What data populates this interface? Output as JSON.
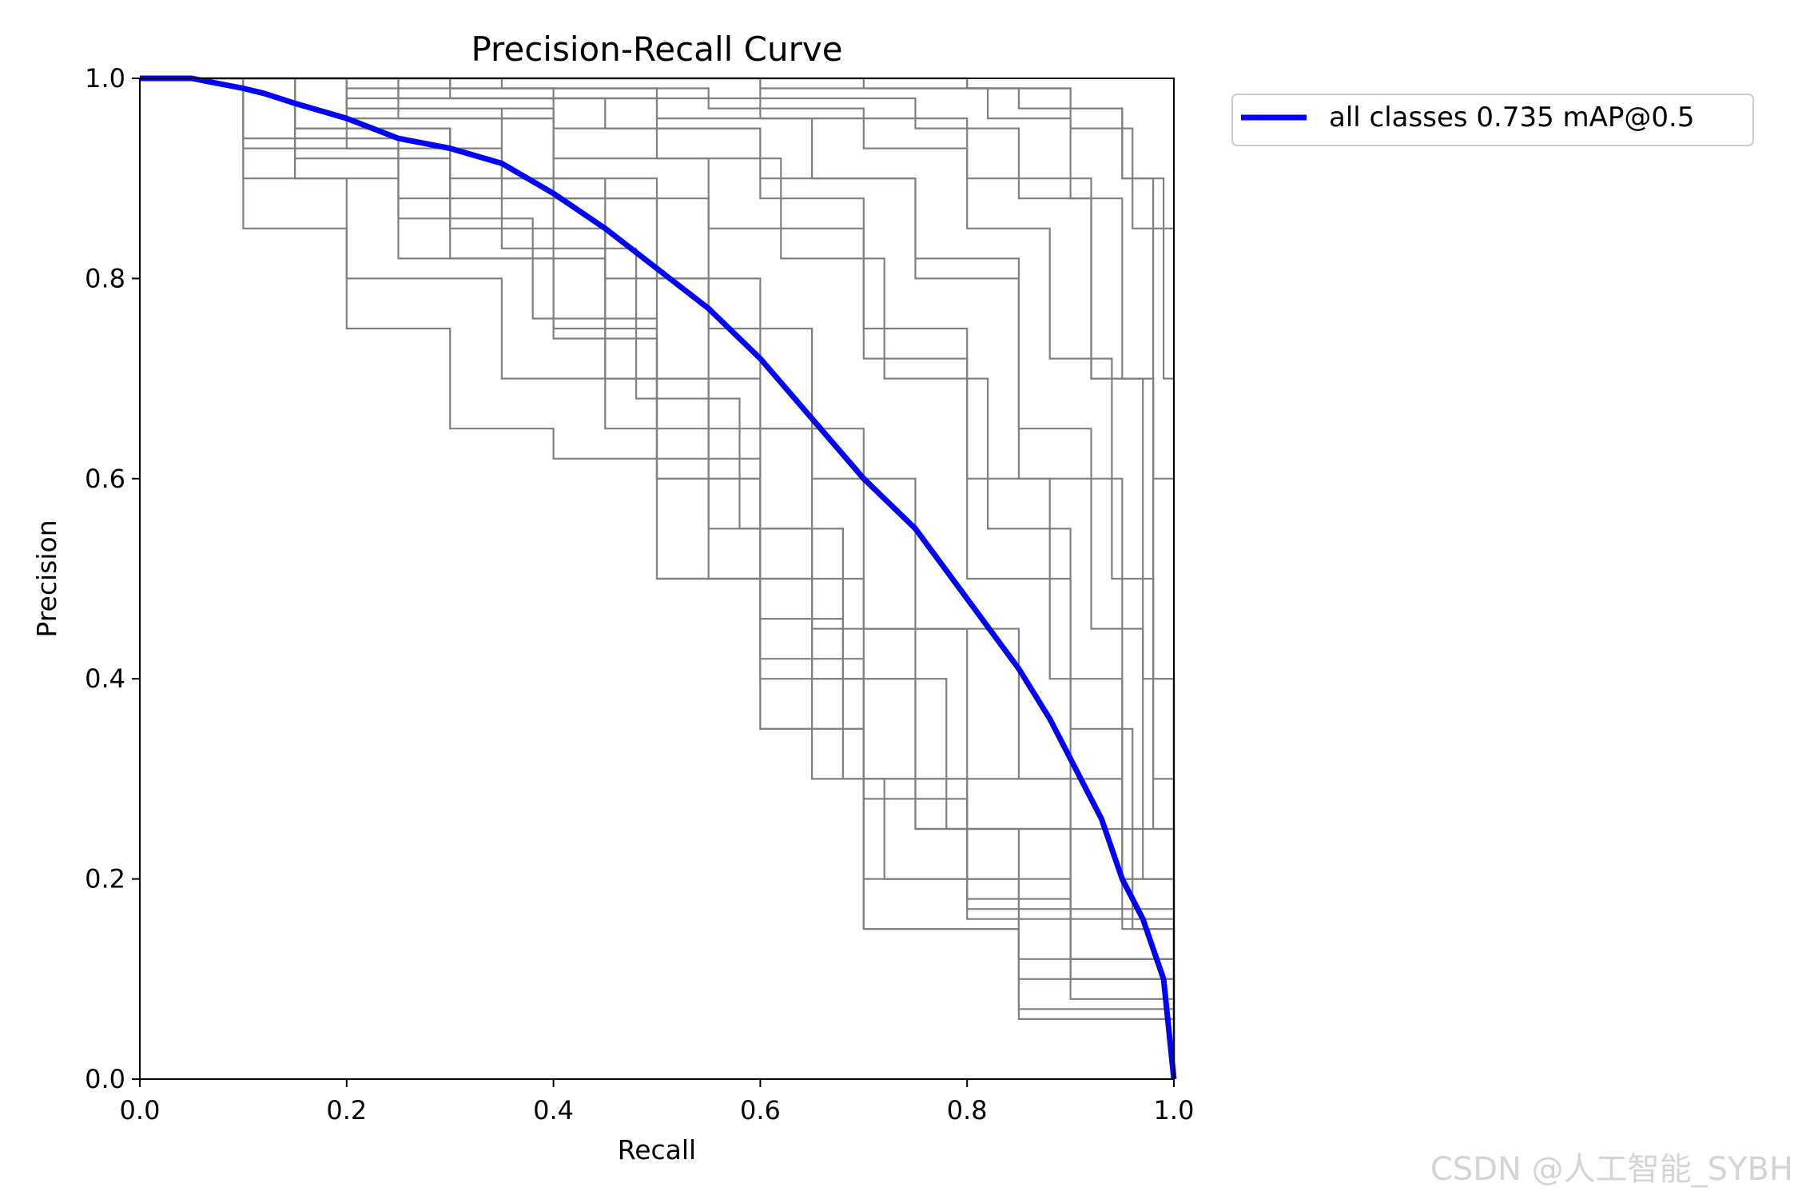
{
  "chart_data": {
    "type": "line",
    "title": "Precision-Recall Curve",
    "xlabel": "Recall",
    "ylabel": "Precision",
    "xlim": [
      0,
      1
    ],
    "ylim": [
      0,
      1
    ],
    "xticks": [
      "0.0",
      "0.2",
      "0.4",
      "0.6",
      "0.8",
      "1.0"
    ],
    "yticks": [
      "0.0",
      "0.2",
      "0.4",
      "0.6",
      "0.8",
      "1.0"
    ],
    "grid": false,
    "legend_position": "outside-top-right",
    "legend": [
      "all classes 0.735 mAP@0.5"
    ],
    "colors": {
      "mean": "#0000ff",
      "class": "#808080"
    },
    "mean_series": {
      "name": "all classes 0.735 mAP@0.5",
      "x": [
        0,
        0.05,
        0.1,
        0.12,
        0.15,
        0.2,
        0.25,
        0.3,
        0.35,
        0.4,
        0.45,
        0.5,
        0.55,
        0.6,
        0.65,
        0.7,
        0.75,
        0.8,
        0.85,
        0.88,
        0.9,
        0.93,
        0.95,
        0.97,
        0.98,
        0.99,
        1.0
      ],
      "y": [
        1.0,
        1.0,
        0.99,
        0.985,
        0.975,
        0.96,
        0.94,
        0.93,
        0.915,
        0.885,
        0.85,
        0.81,
        0.77,
        0.72,
        0.66,
        0.6,
        0.55,
        0.48,
        0.41,
        0.36,
        0.32,
        0.26,
        0.2,
        0.16,
        0.13,
        0.1,
        0.0
      ]
    },
    "class_series": [
      {
        "x": [
          0,
          0.2,
          0.4,
          0.6,
          0.8,
          0.9,
          0.96,
          1.0
        ],
        "y": [
          1.0,
          1.0,
          1.0,
          1.0,
          0.99,
          0.95,
          0.85,
          0.0
        ]
      },
      {
        "x": [
          0,
          0.3,
          0.6,
          0.85,
          0.95,
          0.99,
          1.0
        ],
        "y": [
          1.0,
          1.0,
          0.99,
          0.97,
          0.9,
          0.7,
          0.0
        ]
      },
      {
        "x": [
          0,
          0.2,
          0.4,
          0.6,
          0.8,
          0.92,
          0.98,
          1.0
        ],
        "y": [
          1.0,
          0.99,
          0.98,
          0.96,
          0.9,
          0.7,
          0.3,
          0.0
        ]
      },
      {
        "x": [
          0,
          0.2,
          0.4,
          0.6,
          0.75,
          0.85,
          0.95,
          1.0
        ],
        "y": [
          1.0,
          0.98,
          0.95,
          0.9,
          0.8,
          0.6,
          0.2,
          0.0
        ]
      },
      {
        "x": [
          0,
          0.2,
          0.4,
          0.55,
          0.7,
          0.8,
          0.9,
          1.0
        ],
        "y": [
          1.0,
          0.97,
          0.92,
          0.85,
          0.72,
          0.5,
          0.25,
          0.0
        ]
      },
      {
        "x": [
          0,
          0.15,
          0.3,
          0.45,
          0.55,
          0.65,
          0.75,
          0.9,
          1.0
        ],
        "y": [
          1.0,
          0.95,
          0.9,
          0.8,
          0.65,
          0.45,
          0.25,
          0.1,
          0.0
        ]
      },
      {
        "x": [
          0,
          0.1,
          0.25,
          0.4,
          0.5,
          0.6,
          0.7,
          0.9,
          1.0
        ],
        "y": [
          1.0,
          0.93,
          0.88,
          0.75,
          0.6,
          0.4,
          0.2,
          0.08,
          0.0
        ]
      },
      {
        "x": [
          0,
          0.1,
          0.2,
          0.35,
          0.5,
          0.6,
          0.7,
          0.85,
          1.0
        ],
        "y": [
          1.0,
          0.9,
          0.8,
          0.7,
          0.5,
          0.35,
          0.15,
          0.07,
          0.0
        ]
      },
      {
        "x": [
          0,
          0.1,
          0.2,
          0.3,
          0.4,
          0.5,
          0.6,
          0.7,
          0.85,
          1.0
        ],
        "y": [
          1.0,
          0.85,
          0.75,
          0.65,
          0.62,
          0.5,
          0.35,
          0.15,
          0.06,
          0.0
        ]
      },
      {
        "x": [
          0,
          0.15,
          0.3,
          0.45,
          0.55,
          0.65,
          0.75,
          0.85,
          1.0
        ],
        "y": [
          1.0,
          0.95,
          0.85,
          0.7,
          0.55,
          0.4,
          0.25,
          0.12,
          0.0
        ]
      },
      {
        "x": [
          0,
          0.2,
          0.35,
          0.5,
          0.6,
          0.7,
          0.8,
          0.9,
          1.0
        ],
        "y": [
          1.0,
          0.97,
          0.9,
          0.8,
          0.65,
          0.45,
          0.3,
          0.12,
          0.0
        ]
      },
      {
        "x": [
          0,
          0.25,
          0.45,
          0.6,
          0.7,
          0.8,
          0.88,
          0.95,
          1.0
        ],
        "y": [
          1.0,
          0.98,
          0.95,
          0.88,
          0.75,
          0.6,
          0.4,
          0.2,
          0.0
        ]
      },
      {
        "x": [
          0,
          0.3,
          0.5,
          0.65,
          0.75,
          0.85,
          0.92,
          0.97,
          1.0
        ],
        "y": [
          1.0,
          0.99,
          0.96,
          0.9,
          0.82,
          0.65,
          0.45,
          0.2,
          0.0
        ]
      },
      {
        "x": [
          0,
          0.35,
          0.55,
          0.7,
          0.8,
          0.88,
          0.94,
          0.98,
          1.0
        ],
        "y": [
          1.0,
          0.99,
          0.97,
          0.93,
          0.85,
          0.72,
          0.5,
          0.25,
          0.0
        ]
      },
      {
        "x": [
          0,
          0.4,
          0.6,
          0.75,
          0.85,
          0.92,
          0.97,
          1.0
        ],
        "y": [
          1.0,
          1.0,
          0.98,
          0.95,
          0.88,
          0.7,
          0.4,
          0.0
        ]
      },
      {
        "x": [
          0,
          0.2,
          0.4,
          0.5,
          0.6,
          0.7,
          0.8,
          0.9,
          1.0
        ],
        "y": [
          1.0,
          0.96,
          0.88,
          0.7,
          0.5,
          0.3,
          0.18,
          0.1,
          0.0
        ]
      },
      {
        "x": [
          0,
          0.15,
          0.3,
          0.45,
          0.55,
          0.65,
          0.72,
          0.85,
          1.0
        ],
        "y": [
          1.0,
          0.92,
          0.82,
          0.65,
          0.5,
          0.3,
          0.2,
          0.1,
          0.0
        ]
      },
      {
        "x": [
          0,
          0.25,
          0.4,
          0.55,
          0.65,
          0.75,
          0.85,
          0.95,
          1.0
        ],
        "y": [
          1.0,
          0.96,
          0.88,
          0.75,
          0.6,
          0.45,
          0.3,
          0.15,
          0.0
        ]
      },
      {
        "x": [
          0,
          0.3,
          0.5,
          0.62,
          0.72,
          0.82,
          0.9,
          0.96,
          1.0
        ],
        "y": [
          1.0,
          0.98,
          0.92,
          0.82,
          0.7,
          0.55,
          0.35,
          0.15,
          0.0
        ]
      },
      {
        "x": [
          0,
          0.2,
          0.35,
          0.48,
          0.58,
          0.68,
          0.78,
          0.9,
          1.0
        ],
        "y": [
          1.0,
          0.93,
          0.83,
          0.68,
          0.55,
          0.4,
          0.25,
          0.12,
          0.0
        ]
      },
      {
        "x": [
          0,
          0.5,
          0.7,
          0.82,
          0.9,
          0.95,
          0.98,
          1.0
        ],
        "y": [
          1.0,
          1.0,
          0.99,
          0.96,
          0.88,
          0.7,
          0.4,
          0.0
        ]
      },
      {
        "x": [
          0,
          0.6,
          0.8,
          0.9,
          0.95,
          0.98,
          1.0
        ],
        "y": [
          1.0,
          1.0,
          0.99,
          0.97,
          0.9,
          0.6,
          0.0
        ]
      },
      {
        "x": [
          0,
          0.15,
          0.25,
          0.4,
          0.5,
          0.6,
          0.7,
          0.8,
          1.0
        ],
        "y": [
          1.0,
          0.9,
          0.82,
          0.74,
          0.6,
          0.42,
          0.28,
          0.17,
          0.0
        ]
      },
      {
        "x": [
          0,
          0.1,
          0.25,
          0.38,
          0.5,
          0.6,
          0.68,
          0.8,
          1.0
        ],
        "y": [
          1.0,
          0.94,
          0.86,
          0.76,
          0.62,
          0.46,
          0.3,
          0.16,
          0.0
        ]
      }
    ]
  },
  "watermark": "CSDN @人工智能_SYBH"
}
